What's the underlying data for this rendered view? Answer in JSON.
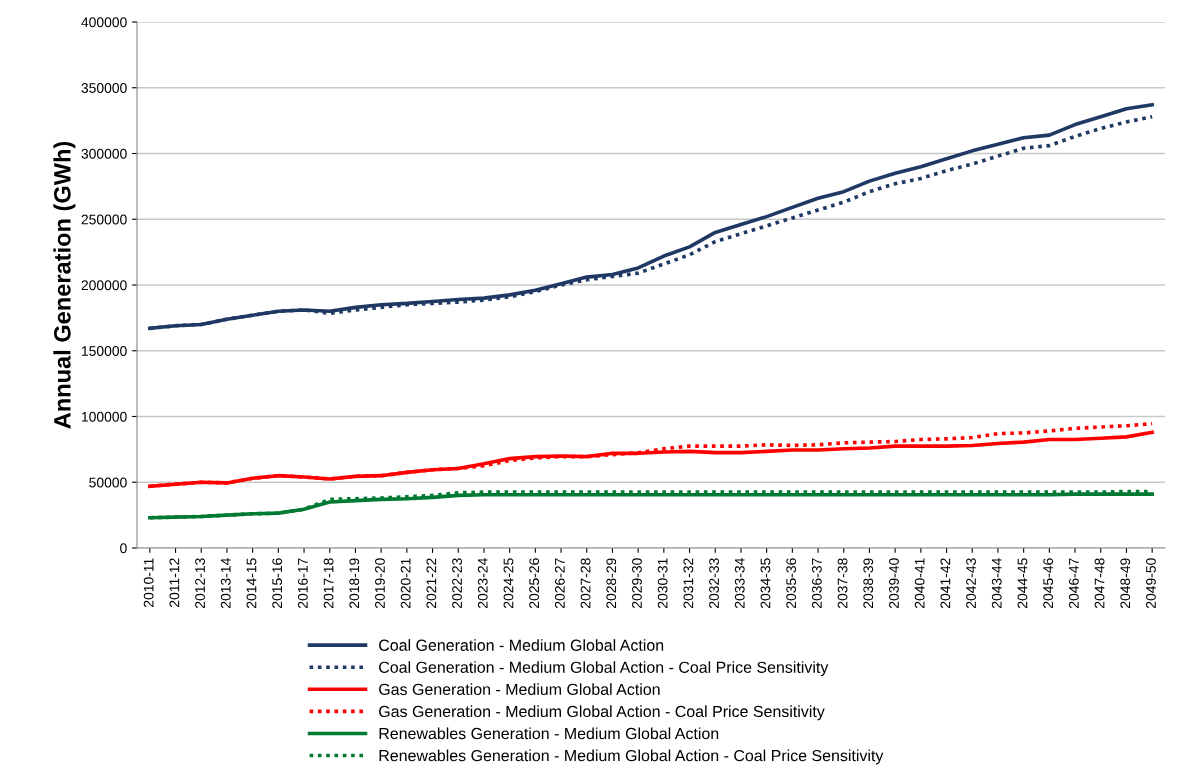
{
  "chart_data": {
    "type": "line",
    "ylabel": "Annual Generation (GWh)",
    "categories": [
      "2010-11",
      "2011-12",
      "2012-13",
      "2013-14",
      "2014-15",
      "2015-16",
      "2016-17",
      "2017-18",
      "2018-19",
      "2019-20",
      "2020-21",
      "2021-22",
      "2022-23",
      "2023-24",
      "2024-25",
      "2025-26",
      "2026-27",
      "2027-28",
      "2028-29",
      "2029-30",
      "2030-31",
      "2031-32",
      "2032-33",
      "2033-34",
      "2034-35",
      "2035-36",
      "2036-37",
      "2037-38",
      "2038-39",
      "2039-40",
      "2040-41",
      "2041-42",
      "2042-43",
      "2043-44",
      "2044-45",
      "2045-46",
      "2046-47",
      "2047-48",
      "2048-49",
      "2049-50"
    ],
    "ylim": [
      0,
      400000
    ],
    "yticks": [
      0,
      50000,
      100000,
      150000,
      200000,
      250000,
      300000,
      350000,
      400000
    ],
    "grid": "y",
    "legend": "bottom",
    "marker": "none",
    "series": [
      {
        "name": "Coal Generation - Medium Global Action",
        "color": "#1f3864",
        "line_style": "solid",
        "values": [
          167000,
          169000,
          170000,
          174000,
          177000,
          180000,
          181000,
          180000,
          183000,
          185000,
          186000,
          187500,
          189000,
          190000,
          192500,
          196000,
          201000,
          206000,
          208000,
          213000,
          222000,
          229000,
          240000,
          246000,
          252000,
          259000,
          266000,
          271000,
          279000,
          285000,
          290000,
          296000,
          302000,
          307000,
          312000,
          314000,
          322000,
          328000,
          334000,
          337000
        ]
      },
      {
        "name": "Coal Generation - Medium Global Action - Coal Price Sensitivity",
        "color": "#1f3864",
        "line_style": "dotted",
        "values": [
          167000,
          169000,
          170000,
          174000,
          177000,
          180000,
          181000,
          178500,
          181000,
          183000,
          185000,
          186000,
          187000,
          188500,
          191000,
          195000,
          200000,
          204000,
          206500,
          209000,
          216000,
          223000,
          233000,
          239000,
          245000,
          251000,
          257000,
          263000,
          271000,
          277000,
          281000,
          287000,
          292000,
          298000,
          304000,
          306000,
          313000,
          319000,
          324000,
          328000
        ]
      },
      {
        "name": "Gas Generation - Medium Global Action",
        "color": "#ff0000",
        "line_style": "solid",
        "values": [
          47000,
          48500,
          50000,
          49500,
          53000,
          55000,
          54000,
          52500,
          54500,
          55000,
          57500,
          59500,
          60500,
          64000,
          68000,
          69500,
          70000,
          69500,
          72000,
          72000,
          73000,
          73500,
          72500,
          72500,
          73500,
          74500,
          74500,
          75500,
          76000,
          77500,
          77500,
          77500,
          78000,
          79500,
          80500,
          82500,
          82500,
          83500,
          84500,
          88000
        ]
      },
      {
        "name": "Gas Generation - Medium Global Action - Coal Price Sensitivity",
        "color": "#ff0000",
        "line_style": "dotted",
        "values": [
          47000,
          48500,
          50000,
          49500,
          53000,
          55000,
          54000,
          52500,
          54500,
          55000,
          57500,
          59500,
          60500,
          62500,
          66500,
          68500,
          69500,
          69500,
          71000,
          72500,
          75500,
          77500,
          77500,
          77500,
          78500,
          78000,
          78500,
          80000,
          80500,
          81000,
          82500,
          83000,
          84000,
          87000,
          87500,
          89000,
          91000,
          92000,
          93000,
          94500
        ]
      },
      {
        "name": "Renewables Generation - Medium Global Action",
        "color": "#007a33",
        "line_style": "solid",
        "values": [
          23000,
          23500,
          24000,
          25000,
          26000,
          26500,
          29500,
          35000,
          36000,
          37000,
          37500,
          38500,
          40000,
          40500,
          40500,
          40500,
          40500,
          40500,
          40500,
          40500,
          40500,
          40500,
          40500,
          40500,
          40500,
          40500,
          40500,
          40500,
          40500,
          40500,
          40500,
          40500,
          40500,
          40500,
          40500,
          40500,
          41000,
          41000,
          41000,
          41000
        ]
      },
      {
        "name": "Renewables Generation - Medium Global Action - Coal Price Sensitivity",
        "color": "#007a33",
        "line_style": "dotted",
        "values": [
          23000,
          23500,
          24000,
          25000,
          26000,
          26500,
          29500,
          37000,
          37500,
          38000,
          39000,
          40000,
          42000,
          42500,
          42500,
          42500,
          42500,
          42500,
          42500,
          42500,
          42500,
          42500,
          42500,
          42500,
          42500,
          42500,
          42500,
          42500,
          42500,
          42500,
          42500,
          42500,
          42500,
          42500,
          42500,
          42500,
          42500,
          42500,
          43000,
          43000
        ]
      }
    ]
  }
}
